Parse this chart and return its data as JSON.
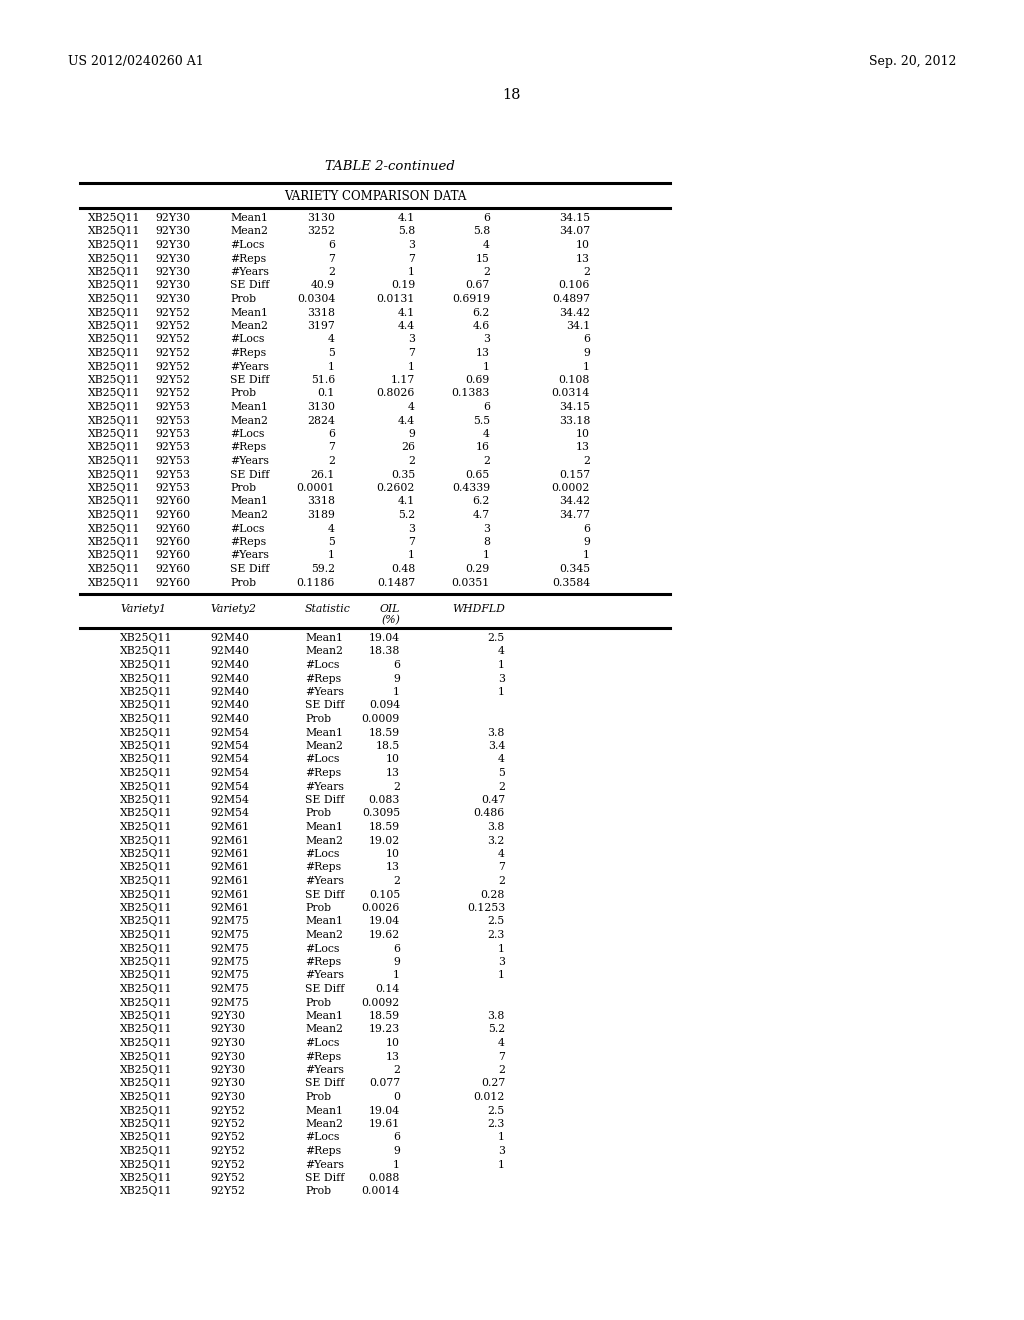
{
  "header_left": "US 2012/0240260 A1",
  "header_right": "Sep. 20, 2012",
  "page_number": "18",
  "table_title": "TABLE 2-continued",
  "section1_title": "VARIETY COMPARISON DATA",
  "section1_rows": [
    [
      "XB25Q11",
      "92Y30",
      "Mean1",
      "3130",
      "4.1",
      "6",
      "34.15"
    ],
    [
      "XB25Q11",
      "92Y30",
      "Mean2",
      "3252",
      "5.8",
      "5.8",
      "34.07"
    ],
    [
      "XB25Q11",
      "92Y30",
      "#Locs",
      "6",
      "3",
      "4",
      "10"
    ],
    [
      "XB25Q11",
      "92Y30",
      "#Reps",
      "7",
      "7",
      "15",
      "13"
    ],
    [
      "XB25Q11",
      "92Y30",
      "#Years",
      "2",
      "1",
      "2",
      "2"
    ],
    [
      "XB25Q11",
      "92Y30",
      "SE Diff",
      "40.9",
      "0.19",
      "0.67",
      "0.106"
    ],
    [
      "XB25Q11",
      "92Y30",
      "Prob",
      "0.0304",
      "0.0131",
      "0.6919",
      "0.4897"
    ],
    [
      "XB25Q11",
      "92Y52",
      "Mean1",
      "3318",
      "4.1",
      "6.2",
      "34.42"
    ],
    [
      "XB25Q11",
      "92Y52",
      "Mean2",
      "3197",
      "4.4",
      "4.6",
      "34.1"
    ],
    [
      "XB25Q11",
      "92Y52",
      "#Locs",
      "4",
      "3",
      "3",
      "6"
    ],
    [
      "XB25Q11",
      "92Y52",
      "#Reps",
      "5",
      "7",
      "13",
      "9"
    ],
    [
      "XB25Q11",
      "92Y52",
      "#Years",
      "1",
      "1",
      "1",
      "1"
    ],
    [
      "XB25Q11",
      "92Y52",
      "SE Diff",
      "51.6",
      "1.17",
      "0.69",
      "0.108"
    ],
    [
      "XB25Q11",
      "92Y52",
      "Prob",
      "0.1",
      "0.8026",
      "0.1383",
      "0.0314"
    ],
    [
      "XB25Q11",
      "92Y53",
      "Mean1",
      "3130",
      "4",
      "6",
      "34.15"
    ],
    [
      "XB25Q11",
      "92Y53",
      "Mean2",
      "2824",
      "4.4",
      "5.5",
      "33.18"
    ],
    [
      "XB25Q11",
      "92Y53",
      "#Locs",
      "6",
      "9",
      "4",
      "10"
    ],
    [
      "XB25Q11",
      "92Y53",
      "#Reps",
      "7",
      "26",
      "16",
      "13"
    ],
    [
      "XB25Q11",
      "92Y53",
      "#Years",
      "2",
      "2",
      "2",
      "2"
    ],
    [
      "XB25Q11",
      "92Y53",
      "SE Diff",
      "26.1",
      "0.35",
      "0.65",
      "0.157"
    ],
    [
      "XB25Q11",
      "92Y53",
      "Prob",
      "0.0001",
      "0.2602",
      "0.4339",
      "0.0002"
    ],
    [
      "XB25Q11",
      "92Y60",
      "Mean1",
      "3318",
      "4.1",
      "6.2",
      "34.42"
    ],
    [
      "XB25Q11",
      "92Y60",
      "Mean2",
      "3189",
      "5.2",
      "4.7",
      "34.77"
    ],
    [
      "XB25Q11",
      "92Y60",
      "#Locs",
      "4",
      "3",
      "3",
      "6"
    ],
    [
      "XB25Q11",
      "92Y60",
      "#Reps",
      "5",
      "7",
      "8",
      "9"
    ],
    [
      "XB25Q11",
      "92Y60",
      "#Years",
      "1",
      "1",
      "1",
      "1"
    ],
    [
      "XB25Q11",
      "92Y60",
      "SE Diff",
      "59.2",
      "0.48",
      "0.29",
      "0.345"
    ],
    [
      "XB25Q11",
      "92Y60",
      "Prob",
      "0.1186",
      "0.1487",
      "0.0351",
      "0.3584"
    ]
  ],
  "section2_rows": [
    [
      "XB25Q11",
      "92M40",
      "Mean1",
      "19.04",
      "2.5"
    ],
    [
      "XB25Q11",
      "92M40",
      "Mean2",
      "18.38",
      "4"
    ],
    [
      "XB25Q11",
      "92M40",
      "#Locs",
      "6",
      "1"
    ],
    [
      "XB25Q11",
      "92M40",
      "#Reps",
      "9",
      "3"
    ],
    [
      "XB25Q11",
      "92M40",
      "#Years",
      "1",
      "1"
    ],
    [
      "XB25Q11",
      "92M40",
      "SE Diff",
      "0.094",
      ""
    ],
    [
      "XB25Q11",
      "92M40",
      "Prob",
      "0.0009",
      ""
    ],
    [
      "XB25Q11",
      "92M54",
      "Mean1",
      "18.59",
      "3.8"
    ],
    [
      "XB25Q11",
      "92M54",
      "Mean2",
      "18.5",
      "3.4"
    ],
    [
      "XB25Q11",
      "92M54",
      "#Locs",
      "10",
      "4"
    ],
    [
      "XB25Q11",
      "92M54",
      "#Reps",
      "13",
      "5"
    ],
    [
      "XB25Q11",
      "92M54",
      "#Years",
      "2",
      "2"
    ],
    [
      "XB25Q11",
      "92M54",
      "SE Diff",
      "0.083",
      "0.47"
    ],
    [
      "XB25Q11",
      "92M54",
      "Prob",
      "0.3095",
      "0.486"
    ],
    [
      "XB25Q11",
      "92M61",
      "Mean1",
      "18.59",
      "3.8"
    ],
    [
      "XB25Q11",
      "92M61",
      "Mean2",
      "19.02",
      "3.2"
    ],
    [
      "XB25Q11",
      "92M61",
      "#Locs",
      "10",
      "4"
    ],
    [
      "XB25Q11",
      "92M61",
      "#Reps",
      "13",
      "7"
    ],
    [
      "XB25Q11",
      "92M61",
      "#Years",
      "2",
      "2"
    ],
    [
      "XB25Q11",
      "92M61",
      "SE Diff",
      "0.105",
      "0.28"
    ],
    [
      "XB25Q11",
      "92M61",
      "Prob",
      "0.0026",
      "0.1253"
    ],
    [
      "XB25Q11",
      "92M75",
      "Mean1",
      "19.04",
      "2.5"
    ],
    [
      "XB25Q11",
      "92M75",
      "Mean2",
      "19.62",
      "2.3"
    ],
    [
      "XB25Q11",
      "92M75",
      "#Locs",
      "6",
      "1"
    ],
    [
      "XB25Q11",
      "92M75",
      "#Reps",
      "9",
      "3"
    ],
    [
      "XB25Q11",
      "92M75",
      "#Years",
      "1",
      "1"
    ],
    [
      "XB25Q11",
      "92M75",
      "SE Diff",
      "0.14",
      ""
    ],
    [
      "XB25Q11",
      "92M75",
      "Prob",
      "0.0092",
      ""
    ],
    [
      "XB25Q11",
      "92Y30",
      "Mean1",
      "18.59",
      "3.8"
    ],
    [
      "XB25Q11",
      "92Y30",
      "Mean2",
      "19.23",
      "5.2"
    ],
    [
      "XB25Q11",
      "92Y30",
      "#Locs",
      "10",
      "4"
    ],
    [
      "XB25Q11",
      "92Y30",
      "#Reps",
      "13",
      "7"
    ],
    [
      "XB25Q11",
      "92Y30",
      "#Years",
      "2",
      "2"
    ],
    [
      "XB25Q11",
      "92Y30",
      "SE Diff",
      "0.077",
      "0.27"
    ],
    [
      "XB25Q11",
      "92Y30",
      "Prob",
      "0",
      "0.012"
    ],
    [
      "XB25Q11",
      "92Y52",
      "Mean1",
      "19.04",
      "2.5"
    ],
    [
      "XB25Q11",
      "92Y52",
      "Mean2",
      "19.61",
      "2.3"
    ],
    [
      "XB25Q11",
      "92Y52",
      "#Locs",
      "6",
      "1"
    ],
    [
      "XB25Q11",
      "92Y52",
      "#Reps",
      "9",
      "3"
    ],
    [
      "XB25Q11",
      "92Y52",
      "#Years",
      "1",
      "1"
    ],
    [
      "XB25Q11",
      "92Y52",
      "SE Diff",
      "0.088",
      ""
    ],
    [
      "XB25Q11",
      "92Y52",
      "Prob",
      "0.0014",
      ""
    ]
  ],
  "bg_color": "#ffffff",
  "text_color": "#000000",
  "font_size": 7.8,
  "header_font_size": 9.0,
  "title_font_size": 9.5,
  "page_num_font_size": 10.5
}
